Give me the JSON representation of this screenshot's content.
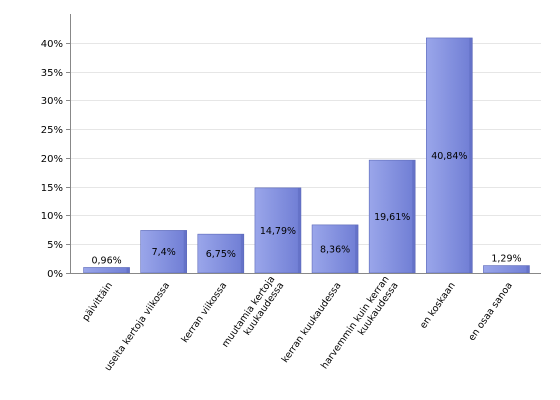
{
  "chart_data": {
    "type": "bar",
    "title": "",
    "xlabel": "",
    "ylabel": "",
    "ylim": [
      0,
      45
    ],
    "yticks": [
      "0%",
      "5%",
      "10%",
      "15%",
      "20%",
      "25%",
      "30%",
      "35%",
      "40%"
    ],
    "grid": true,
    "categories": [
      [
        "päivittäin"
      ],
      [
        "useita kertoja viikossa"
      ],
      [
        "kerran viikossa"
      ],
      [
        "muutamia kertoja",
        "kuukaudessa"
      ],
      [
        "kerran kuukaudessa"
      ],
      [
        "harvemmin kuin kerran",
        "kuukaudessa"
      ],
      [
        "en koskaan"
      ],
      [
        "en osaa sanoa"
      ]
    ],
    "values": [
      0.96,
      7.4,
      6.75,
      14.79,
      8.36,
      19.61,
      40.84,
      1.29
    ],
    "value_labels": [
      "0,96%",
      "7,4%",
      "6,75%",
      "14,79%",
      "8,36%",
      "19,61%",
      "40,84%",
      "1,29%"
    ],
    "colors": {
      "bar_top": "#9aa6ea",
      "bar_bottom": "#6f7dd4",
      "bar_stroke": "#5b68b8",
      "grid": "#e6e6e6",
      "axis": "#888888"
    }
  }
}
